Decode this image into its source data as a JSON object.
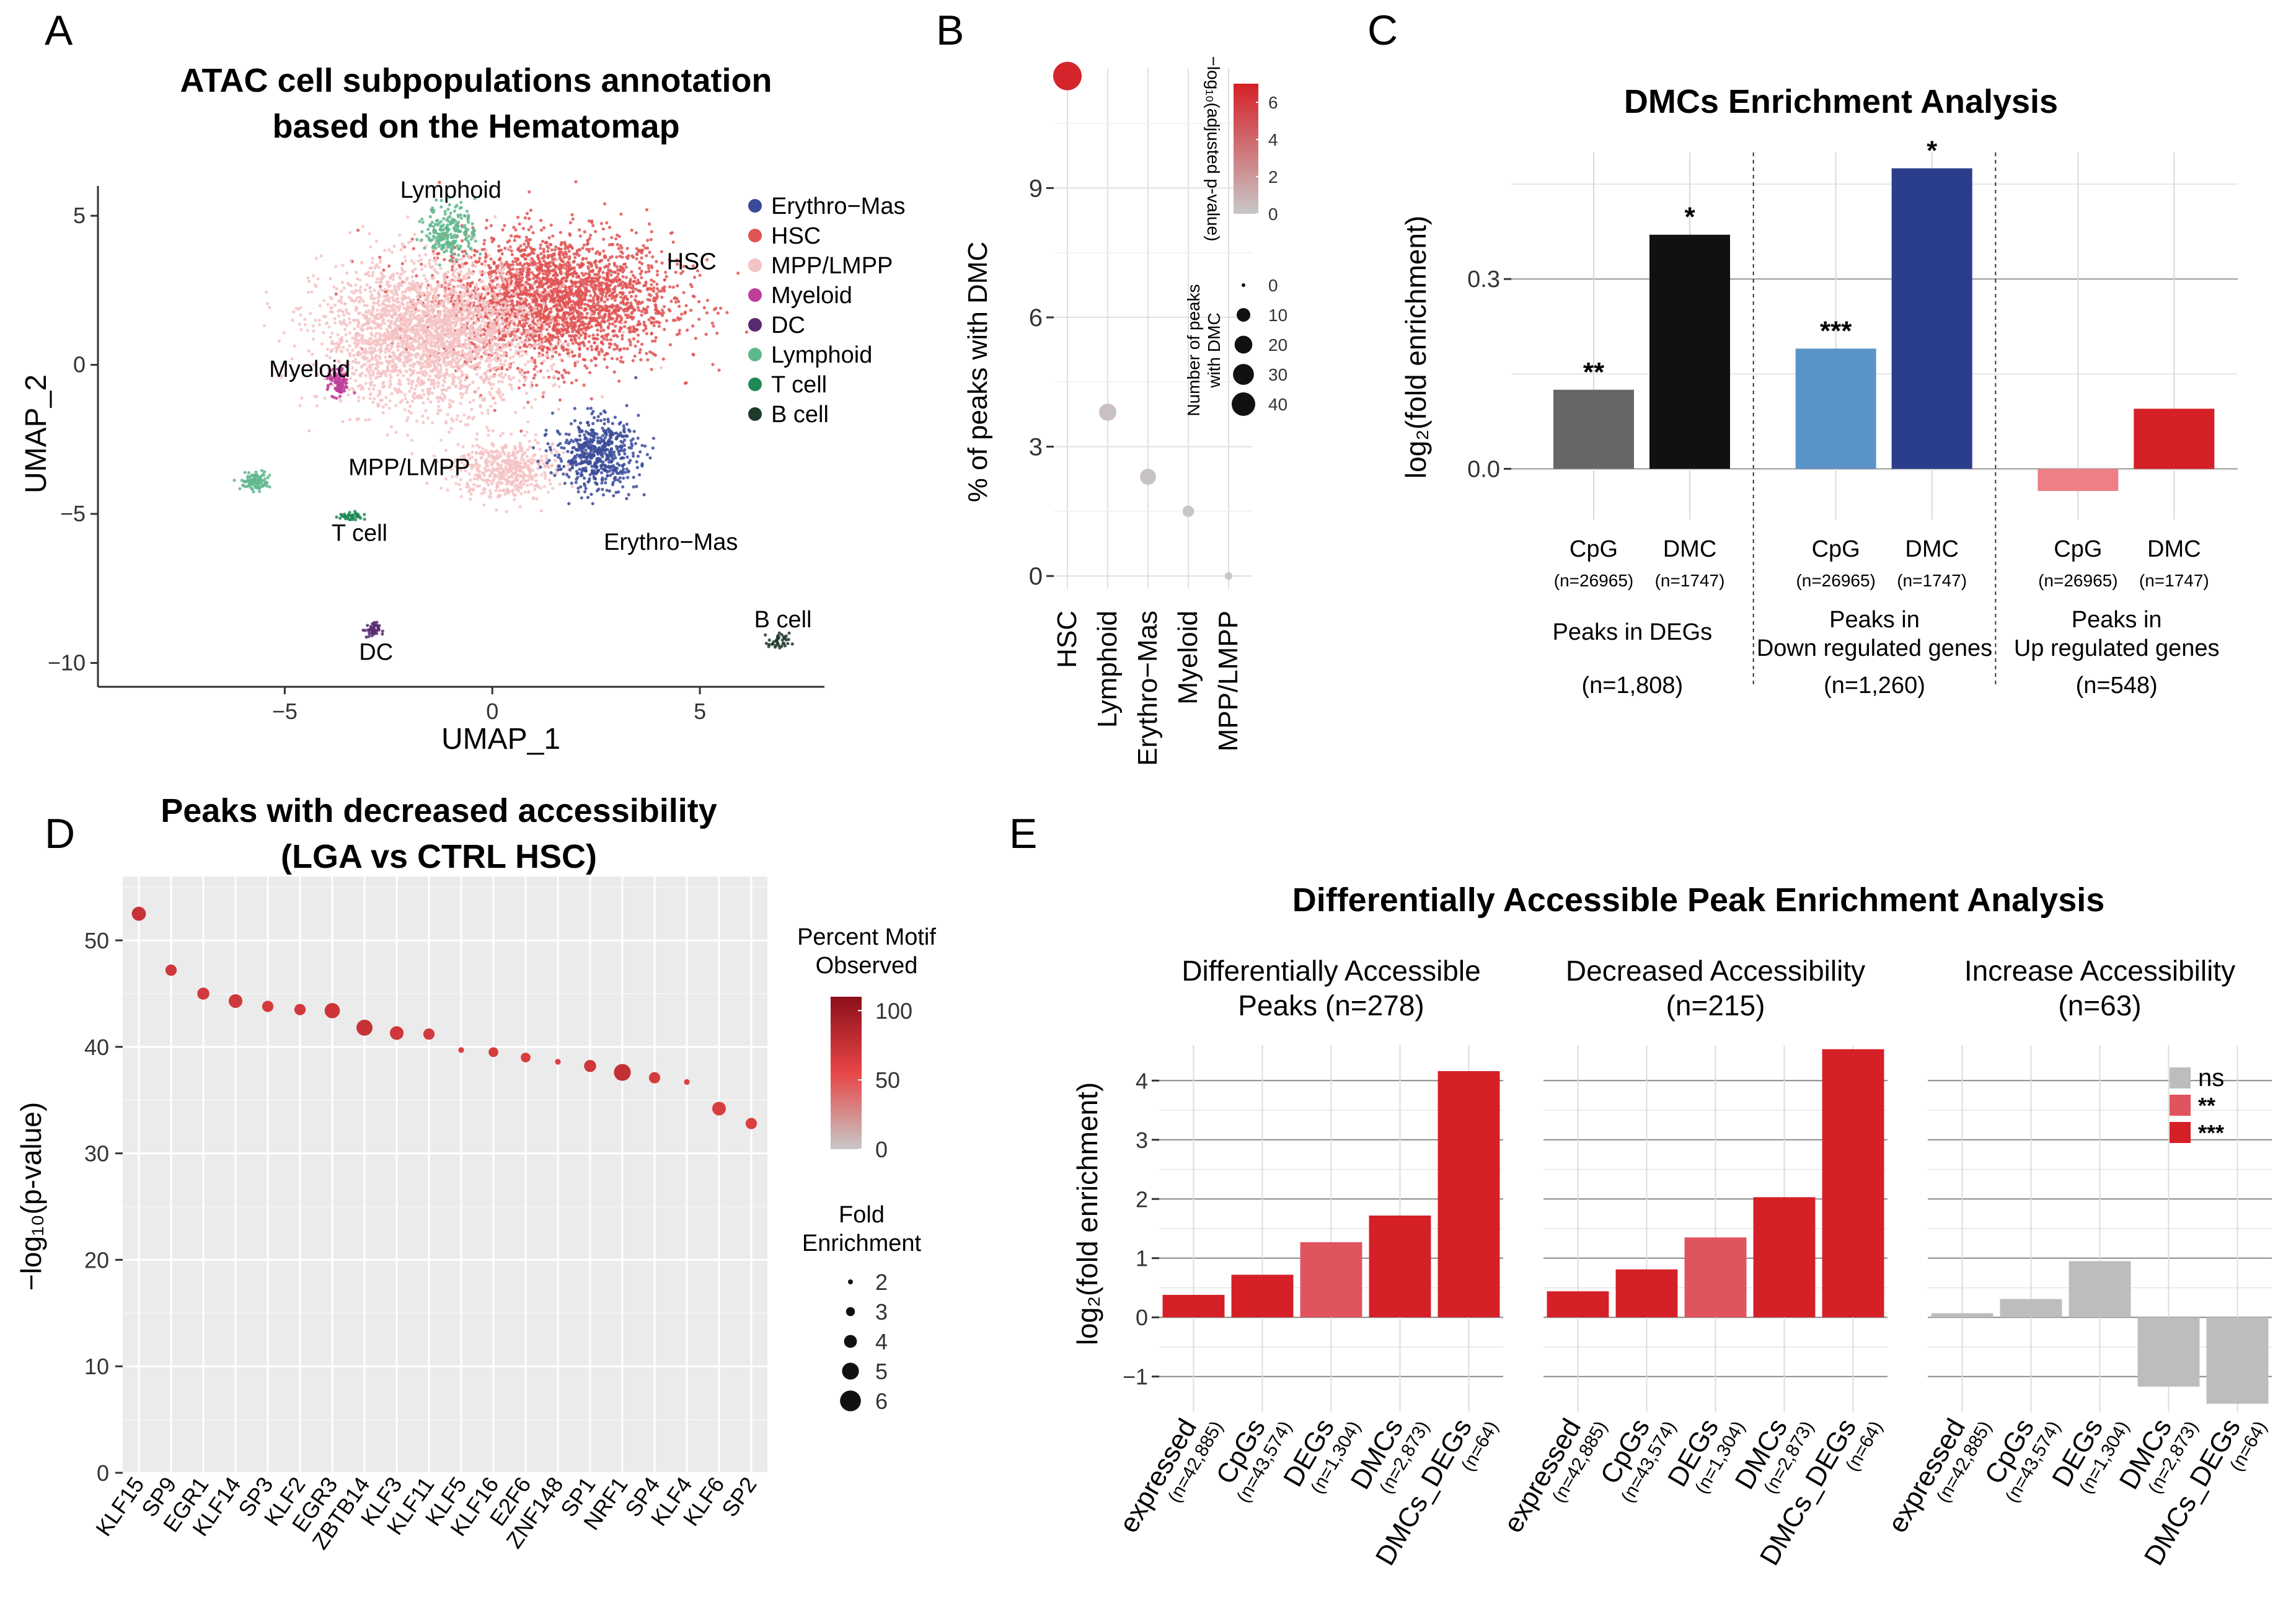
{
  "panels": {
    "A": "A",
    "B": "B",
    "C": "C",
    "D": "D",
    "E": "E"
  },
  "colors": {
    "red": "#d52027",
    "pink": "#f4c3c4",
    "grey": "#bdbdbd",
    "black": "#111111",
    "darkgrey": "#666666",
    "lightblue": "#5a93c8",
    "navy": "#2b3e8c",
    "lightred": "#ef7f86",
    "mediumred": "#e0545e",
    "green": "#5fb88d",
    "darkgreen": "#1f7a4f",
    "purple": "#bd3e9b",
    "darkpurple": "#5a2a6e",
    "bluepoint": "#3b4b9a",
    "ggbg": "#ebebeb"
  },
  "chart_data": [
    {
      "id": "A",
      "type": "scatter",
      "title": "ATAC cell subpopulations annotation based on the Hematomap",
      "title_lines": [
        "ATAC cell subpopulations annotation",
        "based on the Hematomap"
      ],
      "xlabel": "UMAP_1",
      "ylabel": "UMAP_2",
      "xlim": [
        -9.5,
        8
      ],
      "ylim": [
        -10.8,
        6
      ],
      "xticks": [
        -5,
        0,
        5
      ],
      "yticks": [
        5,
        0,
        -5,
        -10
      ],
      "legend": [
        {
          "label": "Erythro−Mas",
          "color": "#3b4b9a"
        },
        {
          "label": "HSC",
          "color": "#e05555"
        },
        {
          "label": "MPP/LMPP",
          "color": "#f4c3c4"
        },
        {
          "label": "Myeloid",
          "color": "#bd3e9b"
        },
        {
          "label": "DC",
          "color": "#5a2a6e"
        },
        {
          "label": "Lymphoid",
          "color": "#5fb88d"
        },
        {
          "label": "T cell",
          "color": "#1f8a55"
        },
        {
          "label": "B cell",
          "color": "#1d3a2a"
        }
      ],
      "clusters": [
        {
          "label": "HSC",
          "color": "#e05555",
          "cx": 1.5,
          "cy": 2.2,
          "sx": 2.8,
          "sy": 2.2,
          "n": 2600
        },
        {
          "label": "MPP/LMPP",
          "color": "#f4c3c4",
          "cx": -1.5,
          "cy": 1.0,
          "sx": 2.6,
          "sy": 2.4,
          "n": 2600
        },
        {
          "label": "MPP/LMPP",
          "color": "#f4c3c4",
          "cx": 0.3,
          "cy": -3.5,
          "sx": 1.2,
          "sy": 1.0,
          "n": 500
        },
        {
          "label": "Erythro−Mas",
          "color": "#3b4b9a",
          "cx": 2.5,
          "cy": -3.0,
          "sx": 1.0,
          "sy": 1.2,
          "n": 550
        },
        {
          "label": "Lymphoid",
          "color": "#5fb88d",
          "cx": -1.0,
          "cy": 4.5,
          "sx": 0.6,
          "sy": 0.9,
          "n": 220
        },
        {
          "label": "Lymphoid",
          "color": "#5fb88d",
          "cx": -5.7,
          "cy": -3.9,
          "sx": 0.35,
          "sy": 0.3,
          "n": 110
        },
        {
          "label": "Myeloid",
          "color": "#bd3e9b",
          "cx": -3.7,
          "cy": -0.6,
          "sx": 0.25,
          "sy": 0.5,
          "n": 100
        },
        {
          "label": "T cell",
          "color": "#1f8a55",
          "cx": -3.4,
          "cy": -5.1,
          "sx": 0.3,
          "sy": 0.15,
          "n": 45
        },
        {
          "label": "DC",
          "color": "#5a2a6e",
          "cx": -2.9,
          "cy": -8.9,
          "sx": 0.18,
          "sy": 0.25,
          "n": 45
        },
        {
          "label": "B cell",
          "color": "#1d3a2a",
          "cx": 6.9,
          "cy": -9.3,
          "sx": 0.25,
          "sy": 0.3,
          "n": 40
        }
      ],
      "annotations": [
        {
          "text": "Lymphoid",
          "x": -1.0,
          "y": 5.6
        },
        {
          "text": "HSC",
          "x": 4.8,
          "y": 3.2
        },
        {
          "text": "Myeloid",
          "x": -4.4,
          "y": -0.4
        },
        {
          "text": "MPP/LMPP",
          "x": -2.0,
          "y": -3.7
        },
        {
          "text": "T cell",
          "x": -3.2,
          "y": -5.9
        },
        {
          "text": "Erythro−Mas",
          "x": 4.3,
          "y": -6.2
        },
        {
          "text": "DC",
          "x": -2.8,
          "y": -9.9
        },
        {
          "text": "B cell",
          "x": 7.0,
          "y": -8.8
        }
      ]
    },
    {
      "id": "B",
      "type": "scatter",
      "ylabel": "% of peaks with DMC",
      "categories": [
        "HSC",
        "Lymphoid",
        "Erythro−Mas",
        "Myeloid",
        "MPP/LMPP"
      ],
      "values": [
        11.6,
        3.8,
        2.3,
        1.5,
        0.0
      ],
      "neg_log10_padj": [
        6.8,
        0.3,
        0.2,
        0.1,
        0.0
      ],
      "n_peaks": [
        40,
        12,
        10,
        4,
        1
      ],
      "ylim": [
        -0.5,
        12.5
      ],
      "yticks": [
        0,
        3,
        6,
        9
      ],
      "color_legend": {
        "title": "−log₁₀(adjusted p-value)",
        "ticks": [
          0,
          2,
          4,
          6
        ]
      },
      "size_legend": {
        "title_lines": [
          "Number of peaks",
          "with DMC"
        ],
        "ticks": [
          0,
          10,
          20,
          30,
          40
        ]
      }
    },
    {
      "id": "C",
      "type": "bar",
      "title": "DMCs Enrichment Analysis",
      "ylabel": "log₂(fold enrichment)",
      "ylim": [
        -0.08,
        0.5
      ],
      "yticks": [
        0.0,
        0.3
      ],
      "ytick_labels": [
        "0.0",
        "0.3"
      ],
      "groups": [
        {
          "name_lines": [
            "Peaks in DEGs"
          ],
          "n": "(n=1,808)",
          "bars": [
            {
              "label": "CpG",
              "n": "(n=26965)",
              "value": 0.125,
              "color": "#666666",
              "sig": "**"
            },
            {
              "label": "DMC",
              "n": "(n=1747)",
              "value": 0.37,
              "color": "#111111",
              "sig": "*"
            }
          ]
        },
        {
          "name_lines": [
            "Peaks in",
            "Down regulated genes"
          ],
          "n": "(n=1,260)",
          "bars": [
            {
              "label": "CpG",
              "n": "(n=26965)",
              "value": 0.19,
              "color": "#5a93c8",
              "sig": "***"
            },
            {
              "label": "DMC",
              "n": "(n=1747)",
              "value": 0.475,
              "color": "#2b3e8c",
              "sig": "*"
            }
          ]
        },
        {
          "name_lines": [
            "Peaks in",
            "Up regulated genes"
          ],
          "n": "(n=548)",
          "bars": [
            {
              "label": "CpG",
              "n": "(n=26965)",
              "value": -0.035,
              "color": "#ef7f86",
              "sig": ""
            },
            {
              "label": "DMC",
              "n": "(n=1747)",
              "value": 0.095,
              "color": "#d52027",
              "sig": ""
            }
          ]
        }
      ]
    },
    {
      "id": "D",
      "type": "scatter",
      "title": "Peaks with decreased accessibility (LGA vs CTRL HSC)",
      "title_lines": [
        "Peaks with decreased accessibility",
        "(LGA vs CTRL HSC)"
      ],
      "ylabel": "−log₁₀(p-value)",
      "categories": [
        "KLF15",
        "SP9",
        "EGR1",
        "KLF14",
        "SP3",
        "KLF2",
        "EGR3",
        "ZBTB14",
        "KLF3",
        "KLF11",
        "KLF5",
        "KLF16",
        "E2F6",
        "ZNF148",
        "SP1",
        "NRF1",
        "SP4",
        "KLF4",
        "KLF6",
        "SP2"
      ],
      "values": [
        52.5,
        47.2,
        45.0,
        44.3,
        43.8,
        43.5,
        43.4,
        41.8,
        41.3,
        41.2,
        39.7,
        39.5,
        39.0,
        38.6,
        38.2,
        37.6,
        37.1,
        36.7,
        34.2,
        32.8
      ],
      "fold_enrichment": [
        4.3,
        3.6,
        3.8,
        4.2,
        3.6,
        3.6,
        4.6,
        4.8,
        4.2,
        3.6,
        2.2,
        3.2,
        3.2,
        2.2,
        3.8,
        5.0,
        3.6,
        2.2,
        4.2,
        3.6
      ],
      "percent_observed": [
        72,
        65,
        64,
        66,
        62,
        64,
        68,
        72,
        66,
        64,
        58,
        62,
        60,
        56,
        66,
        74,
        62,
        56,
        60,
        58
      ],
      "ylim": [
        0,
        56
      ],
      "yticks": [
        0,
        10,
        20,
        30,
        40,
        50
      ],
      "color_legend": {
        "title_lines": [
          "Percent Motif",
          "Observed"
        ],
        "ticks": [
          0,
          50,
          100
        ]
      },
      "size_legend": {
        "title_lines": [
          "Fold",
          "Enrichment"
        ],
        "ticks": [
          2,
          3,
          4,
          5,
          6
        ]
      }
    },
    {
      "id": "E",
      "type": "bar",
      "title": "Differentially Accessible Peak Enrichment Analysis",
      "ylabel": "log₂(fold enrichment)",
      "ylim": [
        -1.6,
        4.6
      ],
      "yticks": [
        -1,
        0,
        1,
        2,
        3,
        4
      ],
      "categories": [
        "expressed",
        "CpGs",
        "DEGs",
        "DMCs",
        "DMCs_DEGs"
      ],
      "category_n": [
        "(n=42,885)",
        "(n=43,574)",
        "(n=1,304)",
        "(n=2,873)",
        "(n=64)"
      ],
      "legend": [
        {
          "label": "ns",
          "color": "#bdbdbd"
        },
        {
          "label": "**",
          "color": "#e0545e"
        },
        {
          "label": "***",
          "color": "#d52027"
        }
      ],
      "facets": [
        {
          "title_lines": [
            "Differentially Accessible",
            "Peaks (n=278)"
          ],
          "values": [
            0.38,
            0.72,
            1.27,
            1.72,
            4.16
          ],
          "sig": [
            "***",
            "***",
            "**",
            "***",
            "***"
          ]
        },
        {
          "title_lines": [
            "Decreased Accessibility",
            "(n=215)"
          ],
          "values": [
            0.44,
            0.81,
            1.35,
            2.03,
            4.53
          ],
          "sig": [
            "***",
            "***",
            "**",
            "***",
            "***"
          ]
        },
        {
          "title_lines": [
            "Increase Accessibility",
            "(n=63)"
          ],
          "values": [
            0.07,
            0.31,
            0.95,
            -1.17,
            -1.46
          ],
          "sig": [
            "ns",
            "ns",
            "ns",
            "ns",
            "ns"
          ]
        }
      ]
    }
  ]
}
